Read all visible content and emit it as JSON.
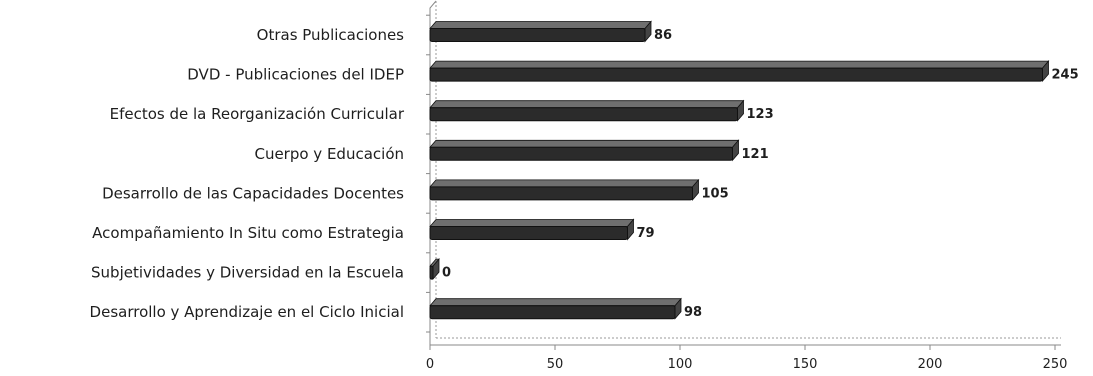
{
  "chart_data": {
    "type": "bar",
    "orientation": "horizontal",
    "style": "3d",
    "categories": [
      "Otras Publicaciones",
      "DVD - Publicaciones del IDEP",
      "Efectos de la Reorganización Curricular",
      "Cuerpo y Educación",
      "Desarrollo de las Capacidades Docentes",
      "Acompañamiento In Situ como Estrategia",
      "Subjetividades y Diversidad en la Escuela",
      "Desarrollo y Aprendizaje en el Ciclo Inicial"
    ],
    "values": [
      86,
      245,
      123,
      121,
      105,
      79,
      0,
      98
    ],
    "value_labels": [
      "86",
      "245",
      "123",
      "121",
      "105",
      "79",
      "0",
      "98"
    ],
    "xlim": [
      0,
      250
    ],
    "x_ticks": [
      0,
      50,
      100,
      150,
      200,
      250
    ],
    "x_tick_labels": [
      "0",
      "50",
      "100",
      "150",
      "200",
      "250"
    ],
    "title": "",
    "xlabel": "",
    "ylabel": "",
    "grid": false,
    "legend": "none",
    "colors": {
      "bar_fill": "#2b2b2b",
      "bar_top": "#6f6f6f",
      "bar_edge": "#111111",
      "axis": "#888888",
      "text": "#1e1e1e",
      "background": "#ffffff"
    }
  }
}
